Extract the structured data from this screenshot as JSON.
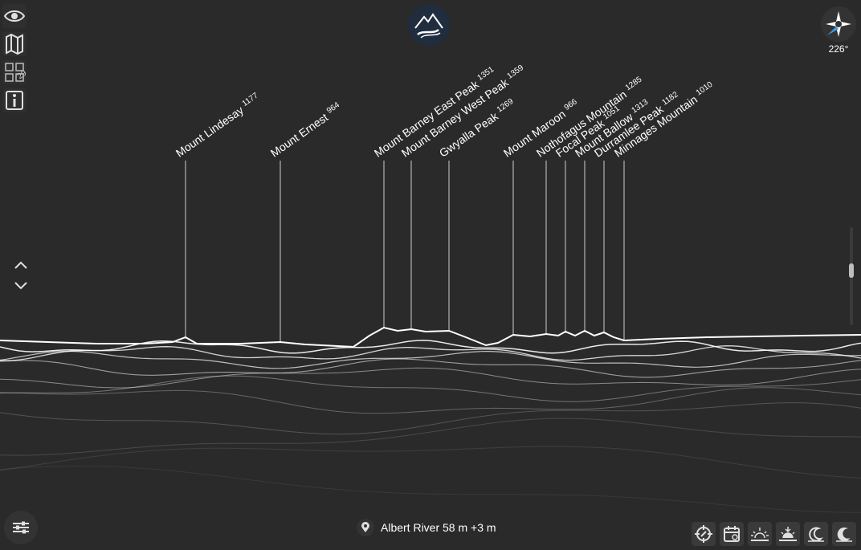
{
  "peaks": [
    {
      "name": "Mount Lindesay",
      "elevation": "1177"
    },
    {
      "name": "Mount Ernest",
      "elevation": "964"
    },
    {
      "name": "Mount Barney East Peak",
      "elevation": "1351"
    },
    {
      "name": "Mount Barney West Peak",
      "elevation": "1359"
    },
    {
      "name": "Gwyalla Peak",
      "elevation": "1269"
    },
    {
      "name": "Mount Maroon",
      "elevation": "966"
    },
    {
      "name": "Nothofagus Mountain",
      "elevation": "1285"
    },
    {
      "name": "Focal Peak",
      "elevation": "1051"
    },
    {
      "name": "Mount Ballow",
      "elevation": "1313"
    },
    {
      "name": "Durramlee Peak",
      "elevation": "1182"
    },
    {
      "name": "Minnages Mountain",
      "elevation": "1010"
    }
  ],
  "left_toolbar": {
    "overlay_small_text": "29",
    "icons": [
      "eye-icon",
      "map-icon",
      "grid-icon",
      "info-icon"
    ]
  },
  "compass": {
    "heading": "226°"
  },
  "location": {
    "text": "Albert River 58 m +3 m"
  },
  "bottom_tools": [
    "target-icon",
    "calendar-icon",
    "sunrise-icon",
    "sunset-icon",
    "moonrise-icon",
    "moonset-icon"
  ],
  "colors": {
    "background": "#2a2a2a",
    "accent": "#ffffff",
    "compass_blue": "#3aa0e6"
  }
}
